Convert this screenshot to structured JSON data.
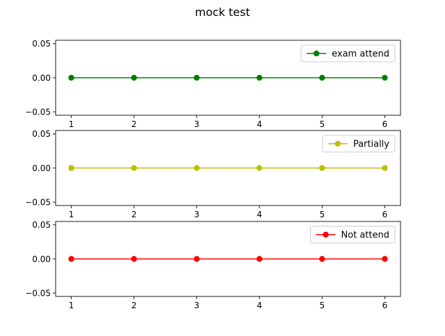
{
  "figure": {
    "title": "mock test"
  },
  "chart_data": [
    {
      "type": "line",
      "title": "",
      "xlabel": "",
      "ylabel": "",
      "x": [
        1,
        2,
        3,
        4,
        5,
        6
      ],
      "xticks": [
        1,
        2,
        3,
        4,
        5,
        6
      ],
      "yticks": [
        0.05,
        0.0,
        -0.05
      ],
      "ytick_labels": [
        "0.05",
        "0.00",
        "−0.05"
      ],
      "ylim": [
        -0.055,
        0.055
      ],
      "xlim": [
        0.75,
        6.25
      ],
      "grid": false,
      "legend": "upper right",
      "series": [
        {
          "name": "exam attend",
          "color": "#008000",
          "marker": "circle",
          "values": [
            0,
            0,
            0,
            0,
            0,
            0
          ]
        }
      ]
    },
    {
      "type": "line",
      "title": "",
      "xlabel": "",
      "ylabel": "",
      "x": [
        1,
        2,
        3,
        4,
        5,
        6
      ],
      "xticks": [
        1,
        2,
        3,
        4,
        5,
        6
      ],
      "yticks": [
        0.05,
        0.0,
        -0.05
      ],
      "ytick_labels": [
        "0.05",
        "0.00",
        "−0.05"
      ],
      "ylim": [
        -0.055,
        0.055
      ],
      "xlim": [
        0.75,
        6.25
      ],
      "grid": false,
      "legend": "upper right",
      "series": [
        {
          "name": "Partially",
          "color": "#bfbf00",
          "marker": "circle",
          "values": [
            0,
            0,
            0,
            0,
            0,
            0
          ]
        }
      ]
    },
    {
      "type": "line",
      "title": "",
      "xlabel": "",
      "ylabel": "",
      "x": [
        1,
        2,
        3,
        4,
        5,
        6
      ],
      "xticks": [
        1,
        2,
        3,
        4,
        5,
        6
      ],
      "yticks": [
        0.05,
        0.0,
        -0.05
      ],
      "ytick_labels": [
        "0.05",
        "0.00",
        "−0.05"
      ],
      "ylim": [
        -0.055,
        0.055
      ],
      "xlim": [
        0.75,
        6.25
      ],
      "grid": false,
      "legend": "upper right",
      "series": [
        {
          "name": "Not attend",
          "color": "#ff0000",
          "marker": "circle",
          "values": [
            0,
            0,
            0,
            0,
            0,
            0
          ]
        }
      ]
    }
  ]
}
